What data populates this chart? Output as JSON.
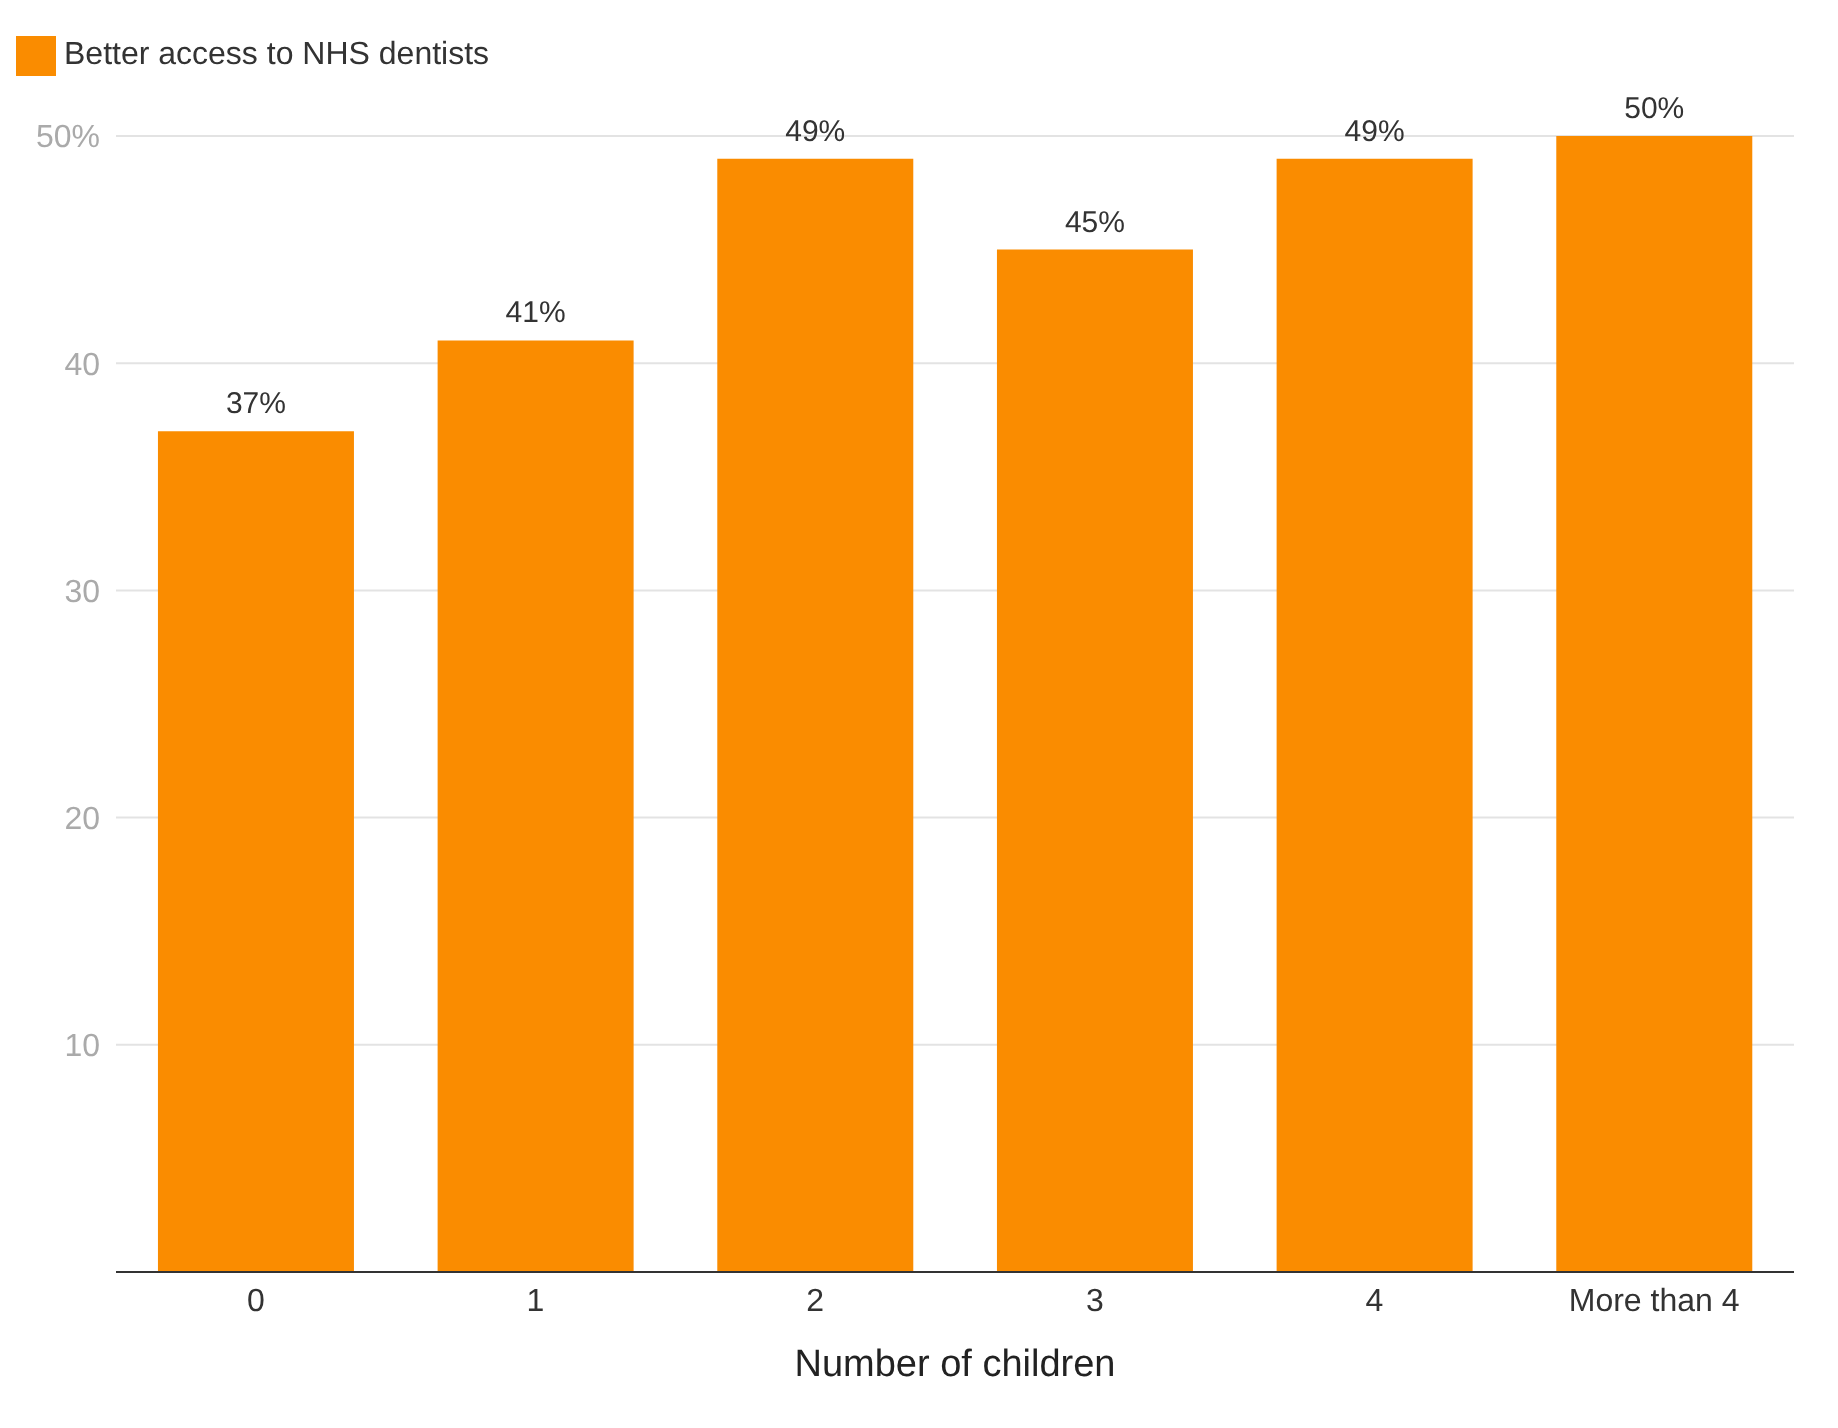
{
  "chart_data": {
    "type": "bar",
    "xlabel": "Number of children",
    "categories": [
      "0",
      "1",
      "2",
      "3",
      "4",
      "More than 4"
    ],
    "series": [
      {
        "name": "Better access to NHS dentists",
        "color": "#fa8c00",
        "values": [
          37,
          41,
          49,
          45,
          49,
          50
        ],
        "value_labels": [
          "37%",
          "41%",
          "49%",
          "45%",
          "49%",
          "50%"
        ]
      }
    ],
    "ylim": [
      0,
      50
    ],
    "yticks": [
      10,
      20,
      30,
      40,
      {
        "value": 50,
        "label": "50%"
      }
    ],
    "grid": "y",
    "legend": "top left"
  }
}
